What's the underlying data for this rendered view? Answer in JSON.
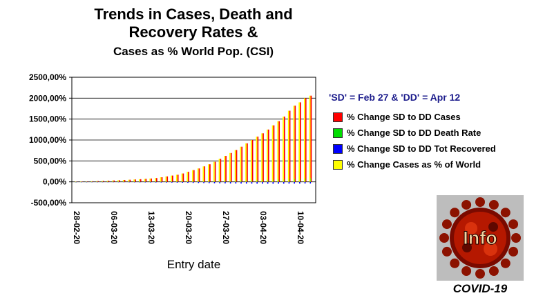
{
  "title": {
    "line1": "Trends in Cases, Death and",
    "line2": "Recovery Rates &",
    "line3": "Cases as % World Pop. (CSI)"
  },
  "legend": {
    "heading": "'SD' = Feb 27 & 'DD' = Apr 12",
    "items": [
      {
        "label": "% Change SD to DD Cases",
        "color": "#ff0000"
      },
      {
        "label": "% Change SD to DD Death Rate",
        "color": "#00dd00"
      },
      {
        "label": "% Change SD to DD Tot Recovered",
        "color": "#0000ff"
      },
      {
        "label": "% Change Cases as % of World",
        "color": "#ffff00"
      }
    ]
  },
  "badge": {
    "logo_text": "Info",
    "caption": "COVID-19"
  },
  "chart_data": {
    "type": "bar",
    "xlabel": "Entry date",
    "ylabel": "",
    "ylim": [
      -500,
      2500
    ],
    "yticks": [
      "2500,00%",
      "2000,00%",
      "1500,00%",
      "1000,00%",
      "500,00%",
      "0,00%",
      "-500,00%"
    ],
    "ytick_values": [
      2500,
      2000,
      1500,
      1000,
      500,
      0,
      -500
    ],
    "xtick_labels": [
      "28-02-20",
      "06-03-20",
      "13-03-20",
      "20-03-20",
      "27-03-20",
      "03-04-20",
      "10-04-20"
    ],
    "xtick_indices": [
      0,
      7,
      14,
      21,
      28,
      35,
      42
    ],
    "grid": true,
    "categories": [
      "28-02-20",
      "29-02-20",
      "01-03-20",
      "02-03-20",
      "03-03-20",
      "04-03-20",
      "05-03-20",
      "06-03-20",
      "07-03-20",
      "08-03-20",
      "09-03-20",
      "10-03-20",
      "11-03-20",
      "12-03-20",
      "13-03-20",
      "14-03-20",
      "15-03-20",
      "16-03-20",
      "17-03-20",
      "18-03-20",
      "19-03-20",
      "20-03-20",
      "21-03-20",
      "22-03-20",
      "23-03-20",
      "24-03-20",
      "25-03-20",
      "26-03-20",
      "27-03-20",
      "28-03-20",
      "29-03-20",
      "30-03-20",
      "31-03-20",
      "01-04-20",
      "02-04-20",
      "03-04-20",
      "04-04-20",
      "05-04-20",
      "06-04-20",
      "07-04-20",
      "08-04-20",
      "09-04-20",
      "10-04-20",
      "11-04-20",
      "12-04-20"
    ],
    "series": [
      {
        "name": "% Change SD to DD Cases",
        "color": "#ff0000",
        "values": [
          3,
          6,
          10,
          14,
          18,
          23,
          28,
          33,
          38,
          44,
          50,
          57,
          63,
          72,
          80,
          90,
          110,
          130,
          150,
          170,
          200,
          240,
          280,
          320,
          370,
          420,
          480,
          550,
          620,
          690,
          760,
          840,
          920,
          1000,
          1080,
          1160,
          1250,
          1350,
          1450,
          1560,
          1700,
          1820,
          1900,
          2000,
          2060
        ]
      },
      {
        "name": "% Change SD to DD Death Rate",
        "color": "#00dd00",
        "values": [
          0,
          1,
          1,
          2,
          2,
          3,
          3,
          4,
          4,
          5,
          5,
          6,
          6,
          7,
          8,
          9,
          10,
          11,
          12,
          14,
          15,
          17,
          18,
          20,
          22,
          24,
          26,
          28,
          30,
          32,
          34,
          36,
          38,
          40,
          42,
          45,
          48,
          52,
          56,
          60,
          65,
          70,
          75,
          82,
          90
        ]
      },
      {
        "name": "% Change SD to DD Tot Recovered",
        "color": "#0000ff",
        "values": [
          0,
          -2,
          -3,
          -4,
          -5,
          -6,
          -7,
          -8,
          -9,
          -10,
          -11,
          -12,
          -13,
          -14,
          -15,
          -16,
          -17,
          -18,
          -19,
          -20,
          -22,
          -24,
          -26,
          -28,
          -30,
          -32,
          -34,
          -36,
          -38,
          -40,
          -41,
          -42,
          -43,
          -44,
          -45,
          -46,
          -47,
          -47,
          -46,
          -45,
          -44,
          -43,
          -42,
          -41,
          -40
        ]
      },
      {
        "name": "% Change Cases as % of World",
        "color": "#ffff00",
        "values": [
          3,
          6,
          10,
          14,
          18,
          23,
          28,
          33,
          38,
          44,
          50,
          57,
          63,
          72,
          80,
          90,
          110,
          130,
          150,
          170,
          200,
          240,
          280,
          320,
          370,
          420,
          480,
          550,
          620,
          690,
          760,
          840,
          920,
          1000,
          1080,
          1160,
          1250,
          1350,
          1450,
          1560,
          1700,
          1820,
          1900,
          2000,
          2060
        ]
      }
    ]
  }
}
